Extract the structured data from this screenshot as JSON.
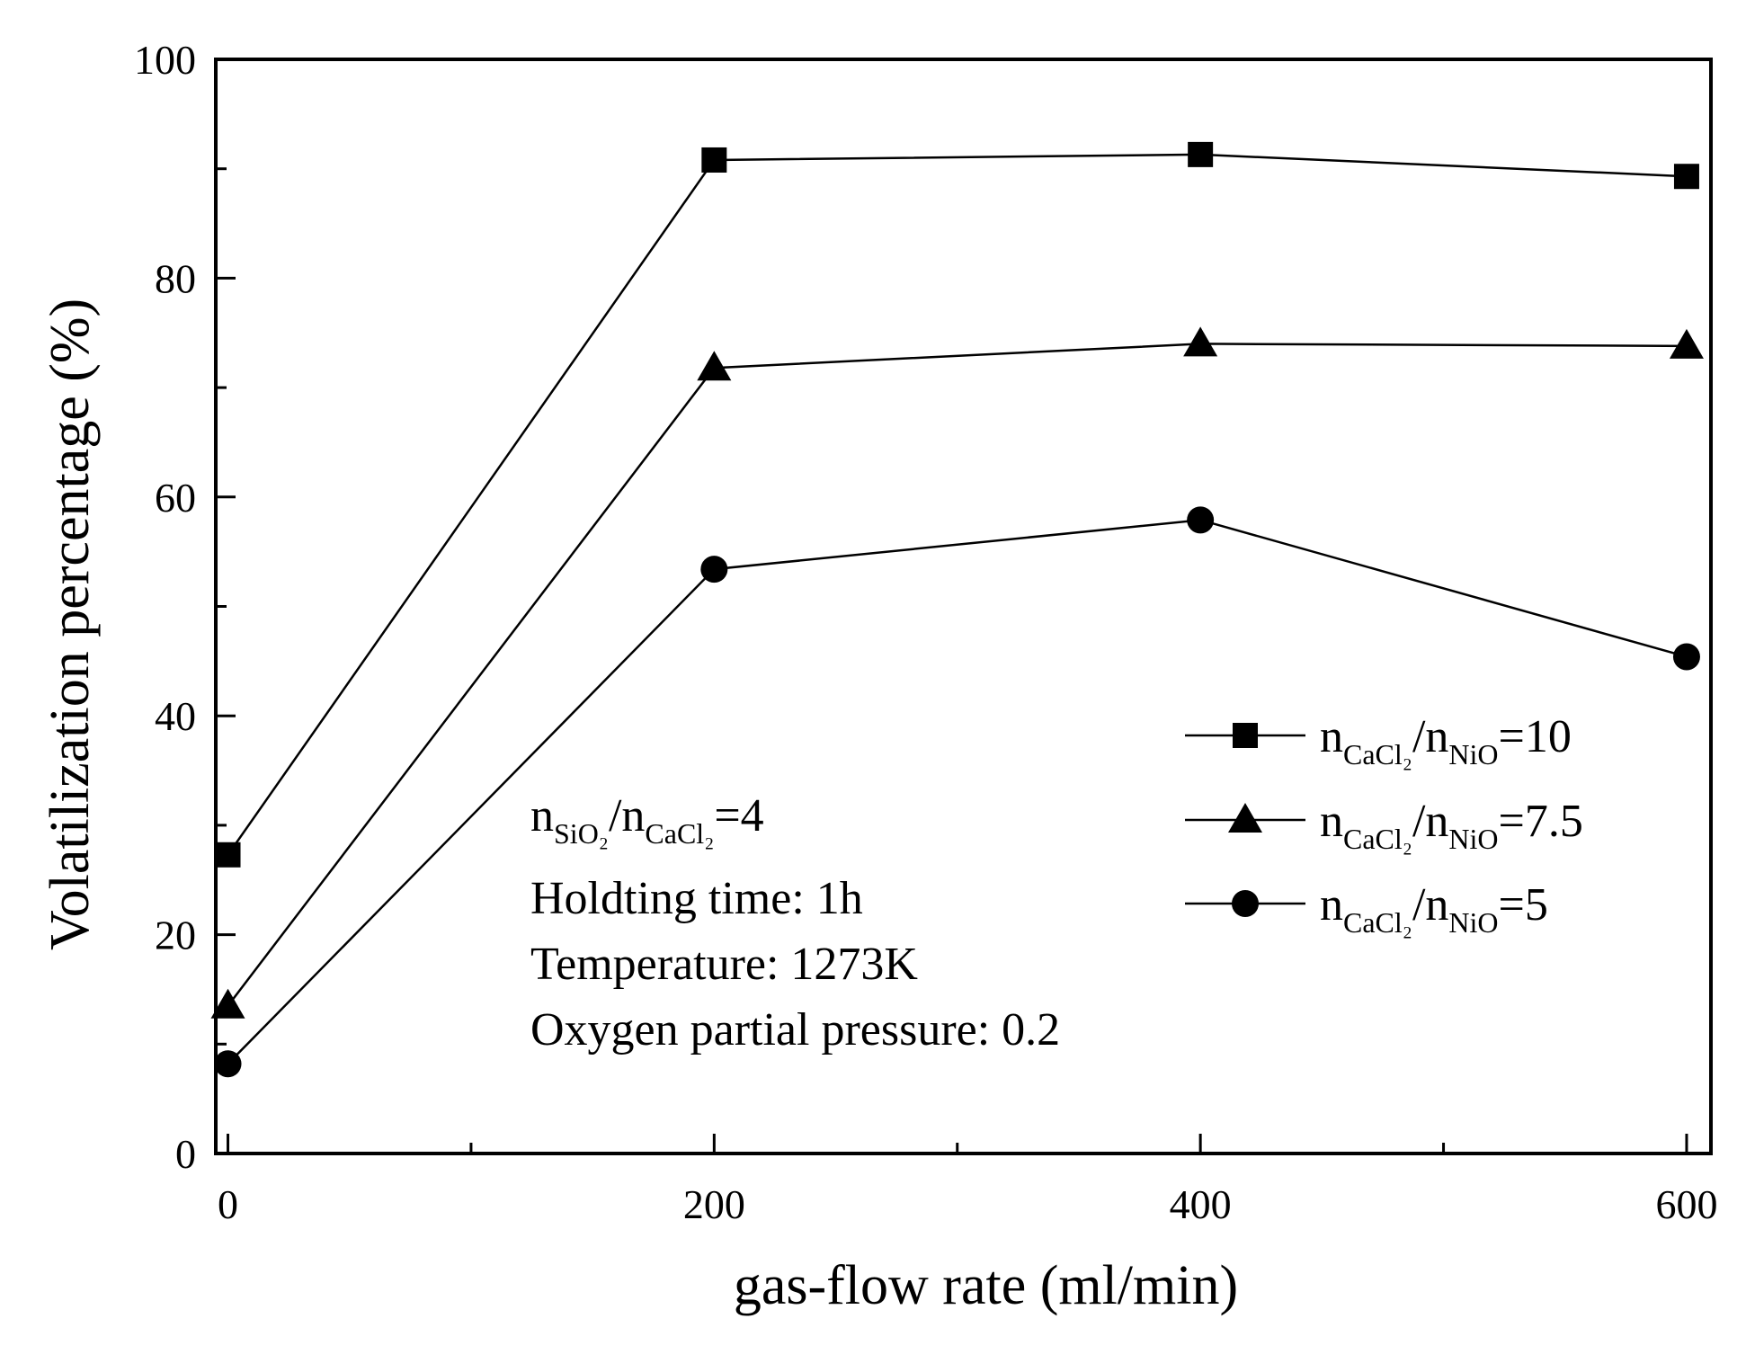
{
  "chart_data": {
    "type": "line",
    "title": "",
    "xlabel": "gas-flow rate (ml/min)",
    "ylabel": "Volatilization percentage (%)",
    "xlim": [
      -5,
      610
    ],
    "ylim": [
      0,
      100
    ],
    "x_ticks": [
      "0",
      "200",
      "400",
      "600"
    ],
    "y_ticks": [
      "0",
      "20",
      "40",
      "60",
      "80",
      "100"
    ],
    "x": [
      0,
      200,
      400,
      600
    ],
    "series": [
      {
        "name": "nCaCl2/nNiO=10",
        "marker": "square",
        "values": [
          27.3,
          90.8,
          91.3,
          89.3
        ],
        "label": {
          "a": "n",
          "a_sub": "CaCl₂",
          "slash": "/",
          "b": "n",
          "b_sub": "NiO",
          "eq": "=10"
        }
      },
      {
        "name": "nCaCl2/nNiO=7.5",
        "marker": "triangle",
        "values": [
          13.5,
          71.8,
          74.0,
          73.8
        ],
        "label": {
          "a": "n",
          "a_sub": "CaCl₂",
          "slash": "/",
          "b": "n",
          "b_sub": "NiO",
          "eq": "=7.5"
        }
      },
      {
        "name": "nCaCl2/nNiO=5",
        "marker": "circle",
        "values": [
          8.2,
          53.4,
          57.9,
          45.4
        ],
        "label": {
          "a": "n",
          "a_sub": "CaCl₂",
          "slash": "/",
          "b": "n",
          "b_sub": "NiO",
          "eq": "=5"
        }
      }
    ],
    "legend_position": "center-right",
    "annotations": {
      "ratio": {
        "a": "n",
        "a_sub": "SiO₂",
        "slash": "/",
        "b": "n",
        "b_sub": "CaCl₂",
        "eq": "=4"
      },
      "lines": [
        "Holdting time: 1h",
        "Temperature: 1273K",
        "Oxygen partial pressure: 0.2"
      ]
    },
    "colors": {
      "line": "#000000",
      "marker": "#000000",
      "background": "#ffffff"
    }
  }
}
